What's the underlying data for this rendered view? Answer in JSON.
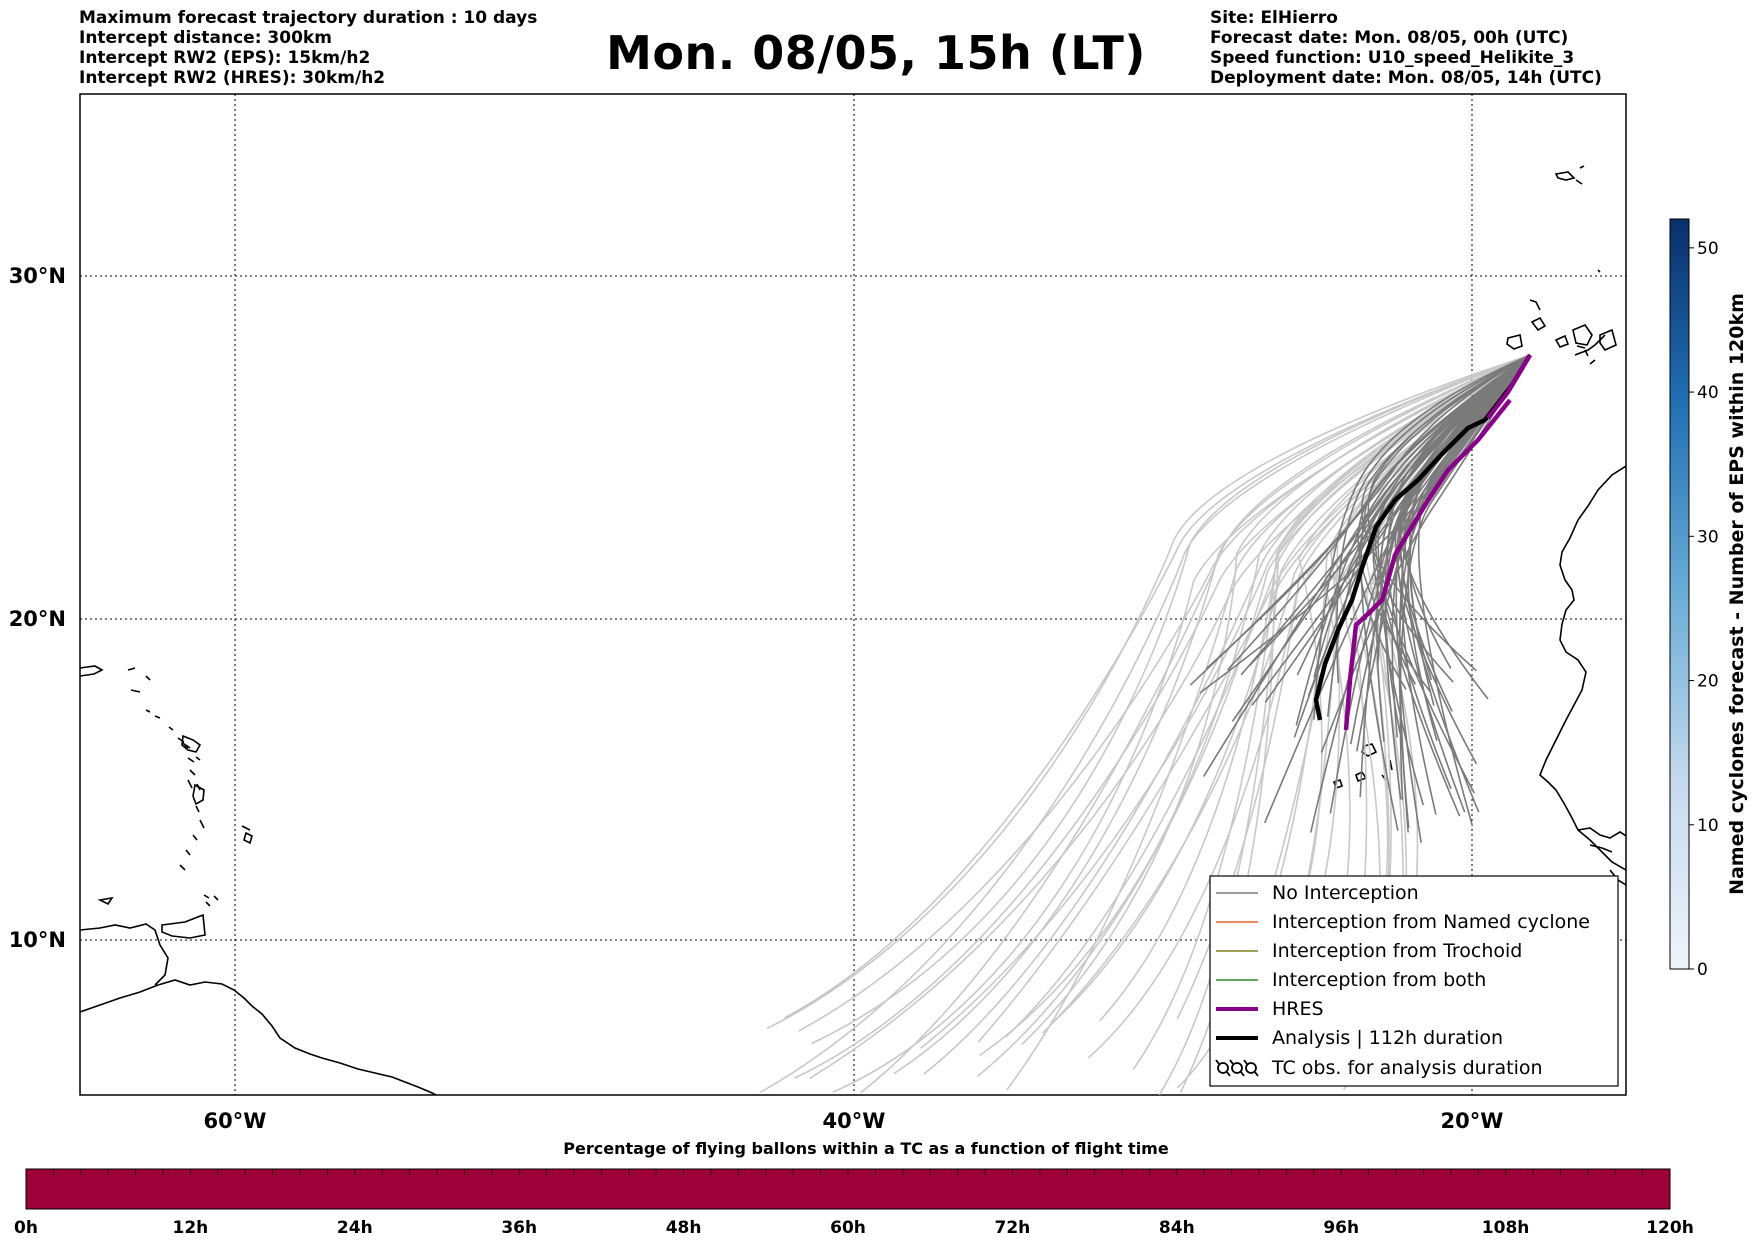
{
  "header": {
    "left": [
      "Maximum forecast trajectory duration : 10 days",
      "Intercept distance: 300km",
      "Intercept RW2 (EPS):  15km/h2",
      "Intercept RW2 (HRES): 30km/h2"
    ],
    "title": "Mon. 08/05, 15h (LT)",
    "right": [
      "Site: ElHierro",
      "Forecast date: Mon. 08/05, 00h (UTC)",
      "Speed function: U10_speed_Helikite_3",
      "Deployment date: Mon. 08/05, 14h (UTC)"
    ]
  },
  "map": {
    "lon_range": [
      -65,
      15
    ],
    "lat_range": [
      5,
      34
    ],
    "lat_labels": [
      "30°N",
      "20°N",
      "10°N"
    ],
    "lon_labels": [
      "60°W",
      "40°W",
      "20°W"
    ],
    "colors": {
      "no_interception": "#7a7a7a",
      "no_interception_late": "#c8c8c8",
      "named_cyclone": "#e8642a",
      "trochoid": "#808020",
      "both": "#2a8a2a",
      "hres": "#8b008b",
      "analysis": "#000000"
    }
  },
  "legend": {
    "items": [
      {
        "label": "No Interception",
        "style": "gray"
      },
      {
        "label": "Interception from Named cyclone",
        "style": "orange"
      },
      {
        "label": "Interception from Trochoid",
        "style": "olive"
      },
      {
        "label": "Interception from both",
        "style": "green"
      },
      {
        "label": "HRES",
        "style": "purple"
      },
      {
        "label": "Analysis | 112h duration",
        "style": "black"
      },
      {
        "label": "TC obs. for analysis duration",
        "style": "tc-symbol"
      }
    ]
  },
  "colorbar_right": {
    "label": "Named cyclones forecast - Number of EPS within 120km",
    "ticks": [
      "0",
      "10",
      "20",
      "30",
      "40",
      "50"
    ],
    "max": 52
  },
  "bottom_bar": {
    "title": "Percentage of flying ballons within a TC as a function of flight time",
    "ticks": [
      "0h",
      "12h",
      "24h",
      "36h",
      "48h",
      "60h",
      "72h",
      "84h",
      "96h",
      "108h",
      "120h"
    ],
    "fill_color": "#9e0038"
  }
}
